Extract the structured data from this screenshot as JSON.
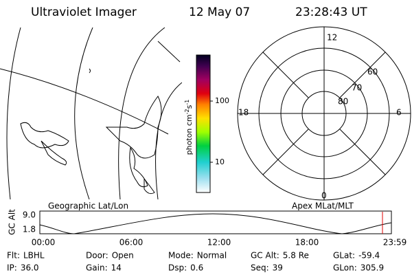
{
  "header": {
    "title": "Ultraviolet Imager",
    "date": "12 May 07",
    "time": "23:28:43 UT"
  },
  "map": {
    "label": "Geographic Lat/Lon"
  },
  "colorbar": {
    "ticks": [
      "100",
      "10"
    ],
    "label": {
      "base": "photon cm",
      "exp1": "-2",
      "mid": "s",
      "exp2": "-1"
    }
  },
  "polar": {
    "label": "Apex MLat/MLT",
    "mlt": [
      "12",
      "18",
      "6",
      "0"
    ],
    "mlat": [
      "60",
      "70",
      "80"
    ]
  },
  "timeline": {
    "ylabel": "GC Alt",
    "yticks": [
      "9.0",
      "1.8"
    ],
    "xticks": [
      "00:00",
      "06:00",
      "12:00",
      "18:00",
      "23:59"
    ]
  },
  "info": [
    [
      {
        "label": "Flt:",
        "value": "LBHL"
      },
      {
        "label": "Door:",
        "value": "Open"
      },
      {
        "label": "Mode:",
        "value": "Normal"
      },
      {
        "label": "GC Alt:",
        "value": "5.8 Re"
      },
      {
        "label": "GLat:",
        "value": "-59.4"
      }
    ],
    [
      {
        "label": "IP:",
        "value": "36.0"
      },
      {
        "label": "Gain:",
        "value": "14"
      },
      {
        "label": "Dsp:",
        "value": "0.6"
      },
      {
        "label": "Seq:",
        "value": "39"
      },
      {
        "label": "GLon:",
        "value": "305.9"
      }
    ]
  ]
}
